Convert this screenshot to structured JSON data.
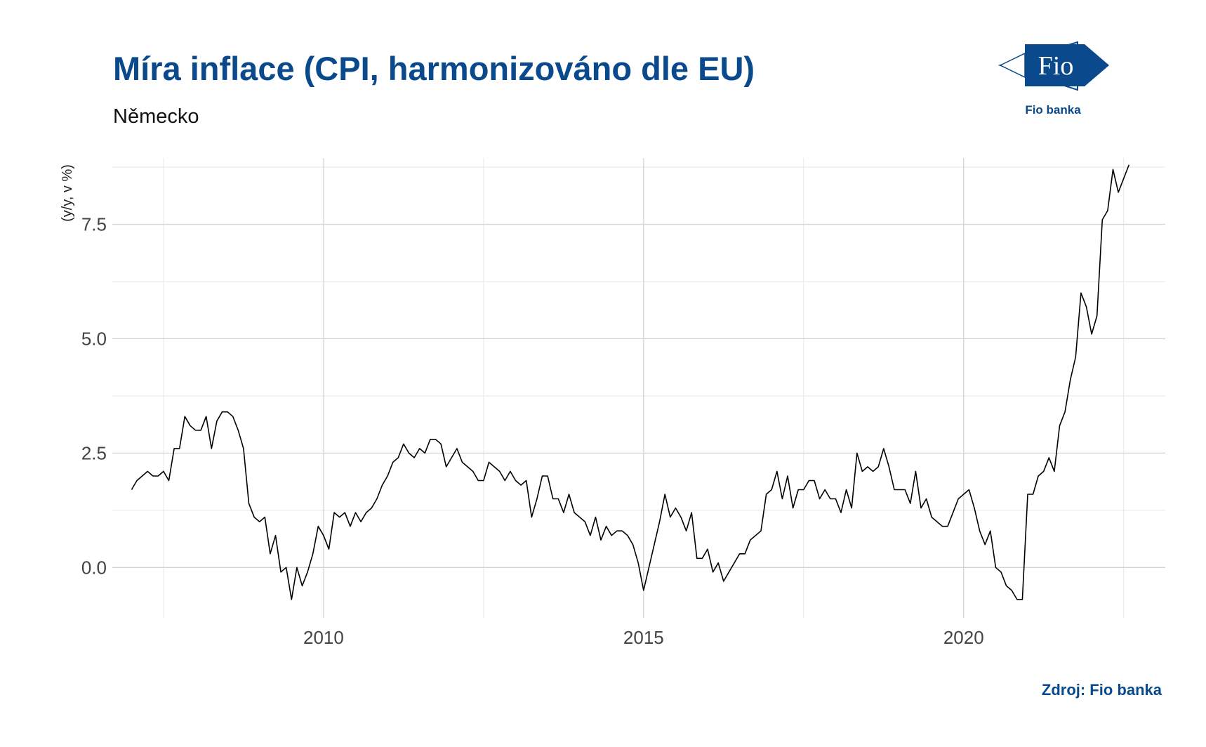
{
  "header": {
    "title": "Míra inflace (CPI, harmonizováno dle EU)",
    "subtitle": "Německo"
  },
  "logo": {
    "mark_text": "Fio",
    "caption": "Fio banka",
    "color": "#0a4a8c"
  },
  "footer": {
    "source": "Zdroj: Fio banka"
  },
  "chart_data": {
    "type": "line",
    "title": "Míra inflace (CPI, harmonizováno dle EU)",
    "subtitle": "Německo",
    "ylabel": "(y/y, v %)",
    "xlabel": "",
    "ylim": [
      -1.1,
      8.95
    ],
    "xlim": [
      2006.7,
      2023.15
    ],
    "xticks": [
      2010,
      2015,
      2020
    ],
    "xtick_labels": [
      "2010",
      "2015",
      "2020"
    ],
    "yticks": [
      0,
      2.5,
      5,
      7.5
    ],
    "ytick_labels": [
      "0.0",
      "2.5",
      "5.0",
      "7.5"
    ],
    "grid": true,
    "line_color": "#000000",
    "series": [
      {
        "start": "2007-01",
        "frequency": "monthly",
        "values": [
          1.7,
          1.9,
          2.0,
          2.1,
          2.0,
          2.0,
          2.1,
          1.9,
          2.6,
          2.6,
          3.3,
          3.1,
          3.0,
          3.0,
          3.3,
          2.6,
          3.2,
          3.4,
          3.4,
          3.3,
          3.0,
          2.6,
          1.4,
          1.1,
          1.0,
          1.1,
          0.3,
          0.7,
          -0.1,
          0.0,
          -0.7,
          0.0,
          -0.4,
          -0.1,
          0.3,
          0.9,
          0.7,
          0.4,
          1.2,
          1.1,
          1.2,
          0.9,
          1.2,
          1.0,
          1.2,
          1.3,
          1.5,
          1.8,
          2.0,
          2.3,
          2.4,
          2.7,
          2.5,
          2.4,
          2.6,
          2.5,
          2.8,
          2.8,
          2.7,
          2.2,
          2.4,
          2.6,
          2.3,
          2.2,
          2.1,
          1.9,
          1.9,
          2.3,
          2.2,
          2.1,
          1.9,
          2.1,
          1.9,
          1.8,
          1.9,
          1.1,
          1.5,
          2.0,
          2.0,
          1.5,
          1.5,
          1.2,
          1.6,
          1.2,
          1.1,
          1.0,
          0.7,
          1.1,
          0.6,
          0.9,
          0.7,
          0.8,
          0.8,
          0.7,
          0.5,
          0.1,
          -0.5,
          0.0,
          0.5,
          1.0,
          1.6,
          1.1,
          1.3,
          1.1,
          0.8,
          1.2,
          0.2,
          0.2,
          0.4,
          -0.1,
          0.1,
          -0.3,
          -0.1,
          0.1,
          0.3,
          0.3,
          0.6,
          0.7,
          0.8,
          1.6,
          1.7,
          2.1,
          1.5,
          2.0,
          1.3,
          1.7,
          1.7,
          1.9,
          1.9,
          1.5,
          1.7,
          1.5,
          1.5,
          1.2,
          1.7,
          1.3,
          2.5,
          2.1,
          2.2,
          2.1,
          2.2,
          2.6,
          2.2,
          1.7,
          1.7,
          1.7,
          1.4,
          2.1,
          1.3,
          1.5,
          1.1,
          1.0,
          0.9,
          0.9,
          1.2,
          1.5,
          1.6,
          1.7,
          1.3,
          0.8,
          0.5,
          0.8,
          0.0,
          -0.1,
          -0.4,
          -0.5,
          -0.7,
          -0.7,
          1.6,
          1.6,
          2.0,
          2.1,
          2.4,
          2.1,
          3.1,
          3.4,
          4.1,
          4.6,
          6.0,
          5.7,
          5.1,
          5.5,
          7.6,
          7.8,
          8.7,
          8.2,
          8.5,
          8.8
        ]
      }
    ]
  }
}
